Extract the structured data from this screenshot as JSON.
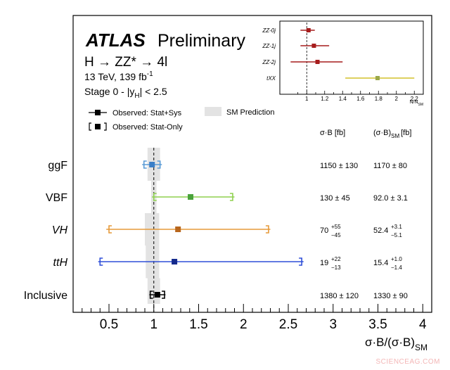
{
  "header": {
    "atlas": "ATLAS",
    "preliminary": "Preliminary",
    "process": "H → ZZ* → 4l",
    "energy": "13 TeV, 139 fb",
    "energy_sup": "-1",
    "stage_pre": "Stage 0 - |y",
    "stage_sub": "H",
    "stage_post": "| < 2.5"
  },
  "legend": {
    "stat_sys": "Observed: Stat+Sys",
    "stat_only": "Observed: Stat-Only",
    "sm": "SM Prediction"
  },
  "columns": {
    "meas_pre": "σ·B [fb]",
    "sm_pre": "(σ·B)",
    "sm_sub": "SM",
    "sm_post": "[fb]"
  },
  "chart_data": [
    {
      "type": "scatter",
      "xlabel_main": "σ·B/(σ·B)",
      "xlabel_sub": "SM",
      "xlim": [
        0.1,
        4.1
      ],
      "xticks": [
        "0.5",
        "1",
        "1.5",
        "2",
        "2.5",
        "3",
        "3.5",
        "4"
      ],
      "xtick_values": [
        0.5,
        1,
        1.5,
        2,
        2.5,
        3,
        3.5,
        4
      ],
      "reference_line": 1,
      "categories": [
        {
          "label": "ggF",
          "italic": false,
          "value": 0.98,
          "err_low": 0.87,
          "err_high": 1.09,
          "stat_low": 0.89,
          "stat_high": 1.07,
          "sm_band": [
            0.93,
            1.07
          ],
          "color": "#5b9bd5",
          "meas_val": "1150",
          "meas_err": "± 130",
          "meas_up": "",
          "meas_dn": "",
          "sm_val": "1170",
          "sm_err": "± 80",
          "sm_up": "",
          "sm_dn": ""
        },
        {
          "label": "VBF",
          "italic": false,
          "value": 1.41,
          "err_low": 0.98,
          "err_high": 1.9,
          "stat_low": 1.0,
          "stat_high": 1.88,
          "sm_band": [
            0.97,
            1.03
          ],
          "color": "#8fd14f",
          "meas_val": "130",
          "meas_err": "± 45",
          "meas_up": "",
          "meas_dn": "",
          "sm_val": "92.0",
          "sm_err": "± 3.1",
          "sm_up": "",
          "sm_dn": ""
        },
        {
          "label": "VH",
          "italic": true,
          "value": 1.27,
          "err_low": 0.47,
          "err_high": 2.3,
          "stat_low": 0.5,
          "stat_high": 2.28,
          "sm_band": [
            0.9,
            1.06
          ],
          "color": "#e69a3a",
          "meas_val": "70",
          "meas_err": "",
          "meas_up": "+55",
          "meas_dn": "−45",
          "sm_val": "52.4",
          "sm_err": "",
          "sm_up": "+3.1",
          "sm_dn": "−5.1"
        },
        {
          "label": "ttH",
          "italic": true,
          "value": 1.23,
          "err_low": 0.38,
          "err_high": 2.67,
          "stat_low": 0.4,
          "stat_high": 2.65,
          "sm_band": [
            0.91,
            1.06
          ],
          "color": "#2f4fd8",
          "meas_val": "19",
          "meas_err": "",
          "meas_up": "+22",
          "meas_dn": "−13",
          "sm_val": "15.4",
          "sm_err": "",
          "sm_up": "+1.0",
          "sm_dn": "−1.4"
        },
        {
          "label": "Inclusive",
          "italic": false,
          "value": 1.04,
          "err_low": 0.95,
          "err_high": 1.13,
          "stat_low": 0.96,
          "stat_high": 1.12,
          "sm_band": [
            0.93,
            1.07
          ],
          "color": "#000000",
          "meas_val": "1380",
          "meas_err": "± 120",
          "meas_up": "",
          "meas_dn": "",
          "sm_val": "1330",
          "sm_err": "± 90",
          "sm_up": "",
          "sm_dn": ""
        }
      ]
    },
    {
      "type": "scatter",
      "xlabel_main": "N/N",
      "xlabel_sub": "SM",
      "xlim": [
        0.7,
        2.3
      ],
      "xticks": [
        "1",
        "1.2",
        "1.4",
        "1.6",
        "1.8",
        "2",
        "2.2"
      ],
      "xtick_values": [
        1,
        1.2,
        1.4,
        1.6,
        1.8,
        2,
        2.2
      ],
      "reference_line": 1,
      "categories": [
        {
          "label": "ZZ-0j",
          "value": 1.02,
          "err_low": 0.93,
          "err_high": 1.09,
          "color": "#a61c1c"
        },
        {
          "label": "ZZ-1j",
          "value": 1.08,
          "err_low": 0.93,
          "err_high": 1.25,
          "color": "#a61c1c"
        },
        {
          "label": "ZZ-2j",
          "value": 1.12,
          "err_low": 0.82,
          "err_high": 1.4,
          "color": "#a61c1c"
        },
        {
          "label": "tXX",
          "value": 1.79,
          "err_low": 1.43,
          "err_high": 2.2,
          "color": "#d4c02a"
        }
      ]
    }
  ],
  "watermark": "SCIENCEAG.COM"
}
